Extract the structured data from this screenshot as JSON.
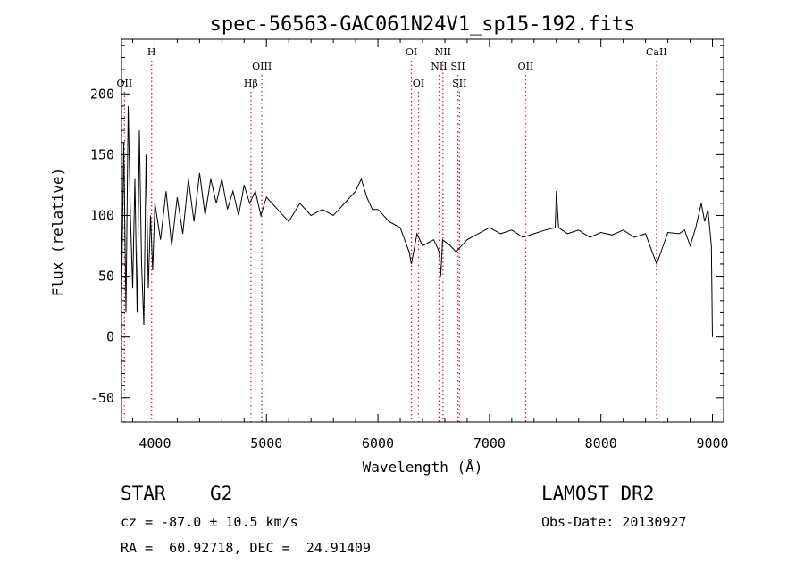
{
  "chart_data": {
    "type": "line",
    "title": "spec-56563-GAC061N24V1_sp15-192.fits",
    "xlabel": "Wavelength (Å)",
    "ylabel": "Flux (relative)",
    "xlim": [
      3700,
      9100
    ],
    "ylim": [
      -70,
      245
    ],
    "xticks": [
      4000,
      5000,
      6000,
      7000,
      8000,
      9000
    ],
    "yticks": [
      -50,
      0,
      50,
      100,
      150,
      200
    ],
    "grid": false,
    "line_color": "#000000",
    "marker_color": "#b03040",
    "lines": [
      {
        "label": "OII",
        "wavelength": 3727,
        "row": 2
      },
      {
        "label": "H",
        "wavelength": 3970,
        "row": 0
      },
      {
        "label": "Hβ",
        "wavelength": 4861,
        "row": 2
      },
      {
        "label": "OIII",
        "wavelength": 4959,
        "row": 1
      },
      {
        "label": "OI",
        "wavelength": 6300,
        "row": 0
      },
      {
        "label": "OI",
        "wavelength": 6364,
        "row": 2
      },
      {
        "label": "NII",
        "wavelength": 6548,
        "row": 1
      },
      {
        "label": "NII",
        "wavelength": 6583,
        "row": 0
      },
      {
        "label": "SII",
        "wavelength": 6717,
        "row": 1
      },
      {
        "label": "SII",
        "wavelength": 6731,
        "row": 2
      },
      {
        "label": "OII",
        "wavelength": 7325,
        "row": 1
      },
      {
        "label": "CaII",
        "wavelength": 8498,
        "row": 0
      }
    ],
    "spectrum": {
      "x": [
        3700,
        3720,
        3740,
        3760,
        3780,
        3800,
        3820,
        3840,
        3860,
        3880,
        3900,
        3920,
        3940,
        3960,
        3980,
        4000,
        4050,
        4100,
        4150,
        4200,
        4250,
        4300,
        4350,
        4400,
        4450,
        4500,
        4550,
        4600,
        4650,
        4700,
        4750,
        4800,
        4850,
        4900,
        4950,
        5000,
        5100,
        5200,
        5300,
        5400,
        5500,
        5600,
        5700,
        5800,
        5850,
        5900,
        5950,
        6000,
        6100,
        6200,
        6280,
        6300,
        6350,
        6400,
        6500,
        6550,
        6563,
        6580,
        6650,
        6700,
        6800,
        6900,
        7000,
        7100,
        7200,
        7300,
        7400,
        7500,
        7590,
        7600,
        7620,
        7700,
        7800,
        7900,
        8000,
        8100,
        8200,
        8300,
        8400,
        8500,
        8600,
        8700,
        8750,
        8800,
        8850,
        8900,
        8930,
        8960,
        8990,
        9000
      ],
      "y": [
        30,
        160,
        20,
        190,
        100,
        40,
        130,
        20,
        170,
        60,
        10,
        150,
        40,
        100,
        55,
        110,
        80,
        120,
        75,
        115,
        85,
        130,
        95,
        135,
        100,
        130,
        110,
        130,
        105,
        120,
        100,
        125,
        110,
        120,
        100,
        115,
        105,
        95,
        110,
        100,
        105,
        100,
        110,
        120,
        130,
        115,
        105,
        105,
        95,
        90,
        70,
        60,
        85,
        75,
        80,
        70,
        50,
        80,
        75,
        70,
        80,
        85,
        90,
        85,
        88,
        82,
        85,
        88,
        90,
        120,
        90,
        85,
        88,
        82,
        86,
        84,
        88,
        82,
        85,
        60,
        86,
        85,
        88,
        75,
        90,
        110,
        95,
        105,
        75,
        0
      ]
    }
  },
  "info": {
    "class_label": "STAR",
    "subclass": "G2",
    "survey": "LAMOST DR2",
    "cz": "cz = -87.0 ± 10.5 km/s",
    "obs_date": "Obs-Date: 20130927",
    "coords": "RA =  60.92718, DEC =  24.91409"
  }
}
